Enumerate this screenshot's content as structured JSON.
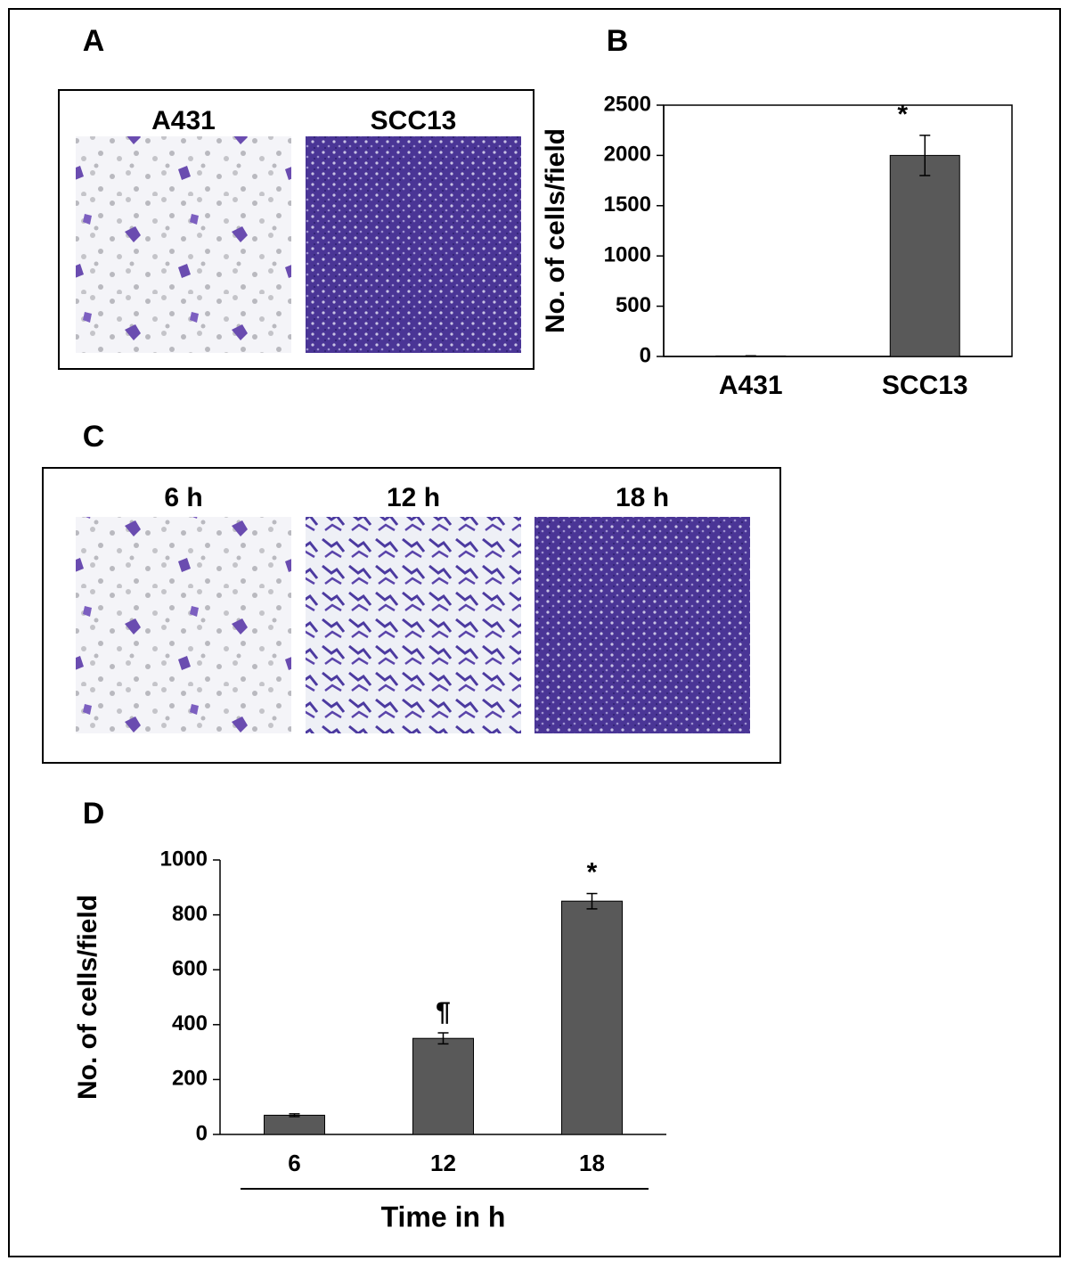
{
  "panels": {
    "a": {
      "label": "A",
      "images": [
        "A431",
        "SCC13"
      ]
    },
    "c": {
      "label": "C",
      "images": [
        "6 h",
        "12 h",
        "18 h"
      ]
    }
  },
  "chart_data": [
    {
      "type": "bar",
      "panel_label": "B",
      "y_label": "No. of cells/field",
      "categories": [
        "A431",
        "SCC13"
      ],
      "values": [
        5,
        2000
      ],
      "errors": [
        2,
        200
      ],
      "annotations": [
        null,
        "*"
      ],
      "color": "#595959",
      "ylim": [
        0,
        2500
      ],
      "yticks": [
        0,
        500,
        1000,
        1500,
        2000,
        2500
      ],
      "frame": true
    },
    {
      "type": "bar",
      "panel_label": "D",
      "y_label": "No. of cells/field",
      "x_label": "Time in h",
      "categories": [
        "6",
        "12",
        "18"
      ],
      "values": [
        70,
        350,
        850
      ],
      "errors": [
        5,
        20,
        28
      ],
      "annotations": [
        null,
        "¶",
        "*"
      ],
      "color": "#595959",
      "ylim": [
        0,
        1000
      ],
      "yticks": [
        0,
        200,
        400,
        600,
        800,
        1000
      ],
      "frame": false
    }
  ]
}
